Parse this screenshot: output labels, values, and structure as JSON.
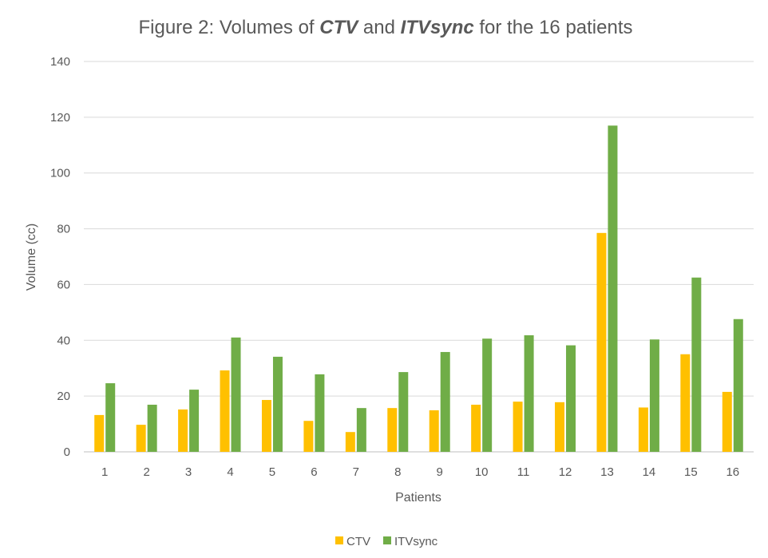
{
  "chart_data": {
    "type": "bar",
    "title": {
      "part1": "Figure 2: Volumes of ",
      "part2": "CTV",
      "part3": " and ",
      "part4": "ITVsync",
      "part5": " for the 16 patients"
    },
    "xlabel": "Patients",
    "ylabel": "Volume (cc)",
    "ylim": [
      0,
      140
    ],
    "yticks": [
      0,
      20,
      40,
      60,
      80,
      100,
      120,
      140
    ],
    "categories": [
      "1",
      "2",
      "3",
      "4",
      "5",
      "6",
      "7",
      "8",
      "9",
      "10",
      "11",
      "12",
      "13",
      "14",
      "15",
      "16"
    ],
    "series": [
      {
        "name": "CTV",
        "color": "#ffc000",
        "values": [
          13.2,
          9.7,
          15.2,
          29.2,
          18.6,
          11.1,
          7.1,
          15.7,
          14.9,
          16.9,
          18.0,
          17.8,
          78.5,
          15.9,
          35.0,
          21.5
        ]
      },
      {
        "name": "ITVsync",
        "color": "#70ad47",
        "values": [
          24.6,
          16.9,
          22.3,
          41.0,
          34.1,
          27.8,
          15.7,
          28.6,
          35.8,
          40.6,
          41.8,
          38.2,
          117.0,
          40.3,
          62.5,
          47.6
        ]
      }
    ],
    "grid": true,
    "legend_position": "bottom"
  }
}
